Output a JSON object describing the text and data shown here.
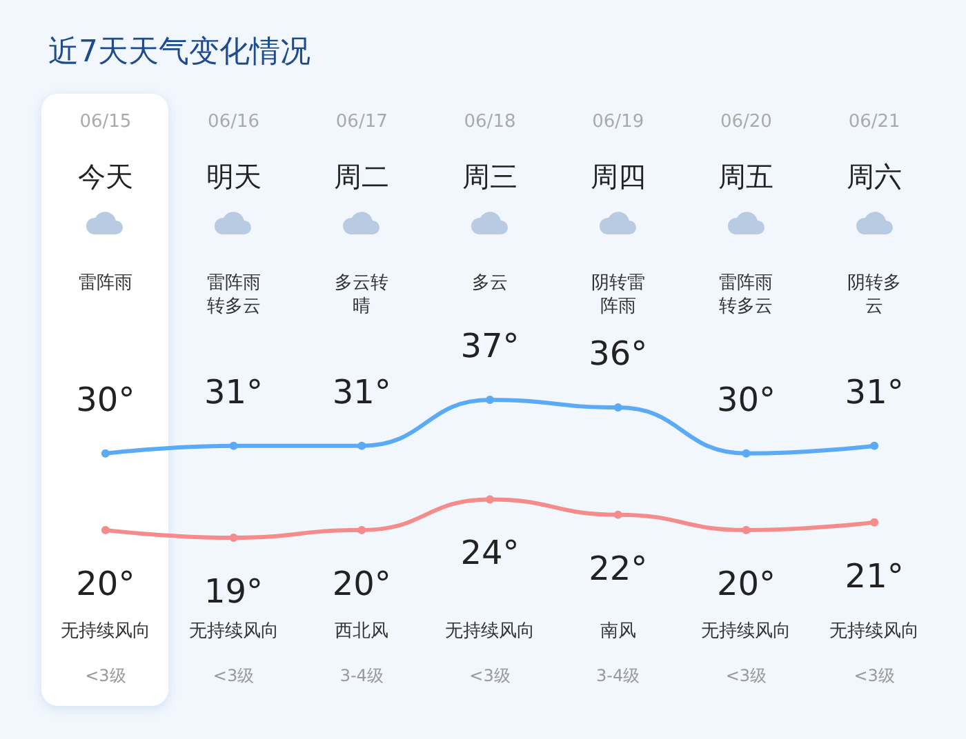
{
  "chart_data": {
    "type": "line",
    "title": "近7天天气变化情况",
    "categories": [
      "06/15",
      "06/16",
      "06/17",
      "06/18",
      "06/19",
      "06/20",
      "06/21"
    ],
    "series": [
      {
        "color": "#5aaaf5",
        "values": [
          30,
          31,
          31,
          37,
          36,
          30,
          31
        ],
        "value_labels": [
          "30°",
          "31°",
          "31°",
          "37°",
          "36°",
          "30°",
          "31°"
        ]
      },
      {
        "color": "#f58c8c",
        "values": [
          20,
          19,
          20,
          24,
          22,
          20,
          21
        ],
        "value_labels": [
          "20°",
          "19°",
          "20°",
          "24°",
          "22°",
          "20°",
          "21°"
        ]
      }
    ],
    "marker": "circle",
    "line_style": "solid",
    "grid": false,
    "annotations": [
      "今天",
      "雷阵雨",
      "无持续风向",
      "<3级",
      "明天",
      "雷阵雨转多云",
      "无持续风向",
      "<3级",
      "周二",
      "多云转晴",
      "西北风",
      "3-4级",
      "周三",
      "多云",
      "无持续风向",
      "<3级",
      "周四",
      "阴转雷阵雨",
      "南风",
      "3-4级",
      "周五",
      "雷阵雨转多云",
      "无持续风向",
      "<3级",
      "周六",
      "阴转多云",
      "无持续风向",
      "<3级"
    ]
  }
}
